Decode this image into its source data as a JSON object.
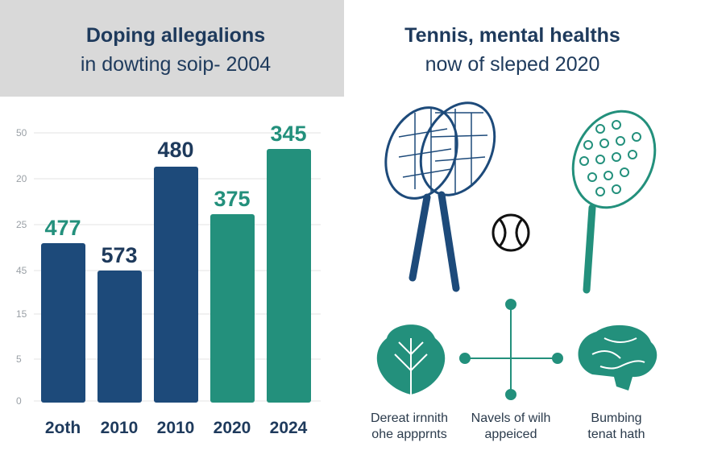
{
  "left_panel": {
    "title_lines": [
      "Doping allegalions",
      "in dowting soip- 2004"
    ],
    "axis_labels": [
      "50",
      "20",
      "25",
      "45",
      "15",
      "5",
      "0"
    ],
    "bars": [
      {
        "label": "477",
        "category": "2oth"
      },
      {
        "label": "573",
        "category": "2010"
      },
      {
        "label": "480",
        "category": "2010"
      },
      {
        "label": "375",
        "category": "2020"
      },
      {
        "label": "345",
        "category": "2024"
      }
    ]
  },
  "right_panel": {
    "title_lines": [
      "Tennis, mental healths",
      "now of sleped 2020"
    ],
    "captions": [
      [
        "Dereat irnnith",
        "ohe appprnts"
      ],
      [
        "Navels of wilh",
        "appeiced"
      ],
      [
        "Bumbing",
        "tenat hath"
      ]
    ]
  }
}
